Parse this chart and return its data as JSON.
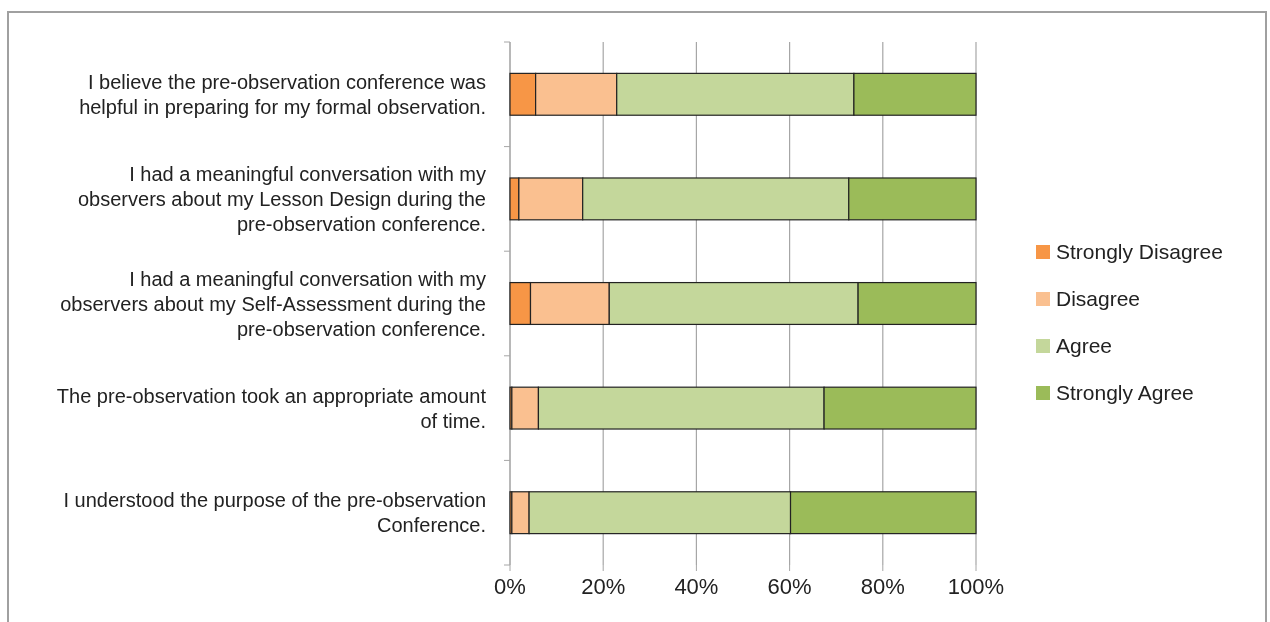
{
  "chart_data": {
    "type": "bar",
    "orientation": "horizontal",
    "stacked": true,
    "categories": [
      "I believe the pre-observation conference was helpful in preparing for my formal observation.",
      "I had a meaningful conversation with my observers about my Lesson Design during the pre-observation conference.",
      "I had a meaningful conversation with my observers about my Self-Assessment during the pre-observation conference.",
      "The pre-observation took an appropriate amount of time.",
      "I understood the purpose of the pre-observation Conference."
    ],
    "series": [
      {
        "name": "Strongly Disagree",
        "color": "#f79646",
        "values": [
          5.5,
          1.9,
          4.4,
          0.4,
          0.4
        ]
      },
      {
        "name": "Disagree",
        "color": "#fac090",
        "values": [
          17.4,
          13.7,
          16.9,
          5.7,
          3.7
        ]
      },
      {
        "name": "Agree",
        "color": "#c4d79b",
        "values": [
          50.9,
          57.1,
          53.4,
          61.3,
          56.1
        ]
      },
      {
        "name": "Strongly Agree",
        "color": "#9bbb59",
        "values": [
          26.2,
          27.3,
          25.3,
          32.6,
          39.8
        ]
      }
    ],
    "xlim": [
      0,
      100
    ],
    "xticks": [
      {
        "value": 0,
        "label": "0%"
      },
      {
        "value": 20,
        "label": "20%"
      },
      {
        "value": 40,
        "label": "40%"
      },
      {
        "value": 60,
        "label": "60%"
      },
      {
        "value": 80,
        "label": "80%"
      },
      {
        "value": 100,
        "label": "100%"
      }
    ],
    "grid": "x",
    "legend": "right"
  }
}
